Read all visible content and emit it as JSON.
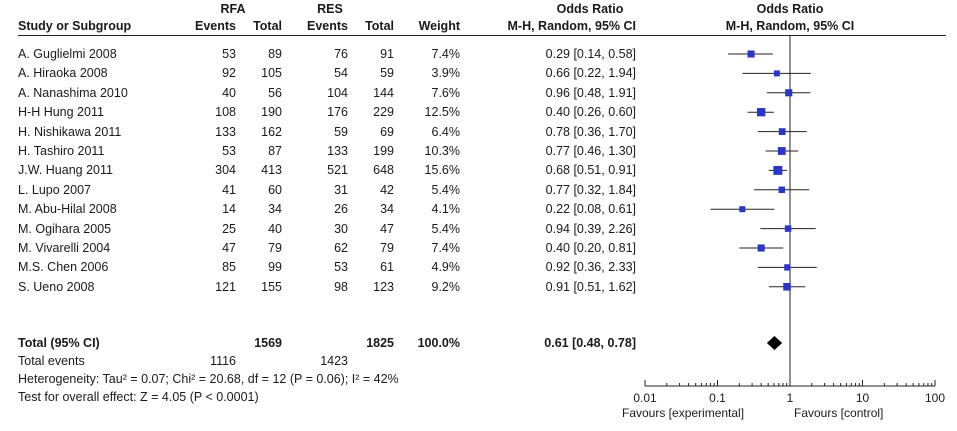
{
  "headers": {
    "group_rfa": "RFA",
    "group_res": "RES",
    "study": "Study or Subgroup",
    "events1": "Events",
    "total1": "Total",
    "events2": "Events",
    "total2": "Total",
    "weight": "Weight",
    "or_title": "Odds Ratio",
    "or_method": "M-H, Random, 95% CI",
    "plot_title": "Odds Ratio",
    "plot_method": "M-H, Random, 95% CI"
  },
  "chart_data": {
    "type": "forest",
    "x_scale": "log",
    "xlim": [
      0.01,
      100
    ],
    "ticks": [
      "0.01",
      "0.1",
      "1",
      "10",
      "100"
    ],
    "tick_values": [
      0.01,
      0.1,
      1,
      10,
      100
    ],
    "null_line": 1,
    "xlabel_left": "Favours [experimental]",
    "xlabel_right": "Favours [control]",
    "studies": [
      {
        "study": "A. Guglielmi 2008",
        "e1": "53",
        "n1": "89",
        "e2": "76",
        "n2": "91",
        "weight": "7.4%",
        "ci": "0.29 [0.14, 0.58]",
        "or": 0.29,
        "lo": 0.14,
        "hi": 0.58
      },
      {
        "study": "A. Hiraoka 2008",
        "e1": "92",
        "n1": "105",
        "e2": "54",
        "n2": "59",
        "weight": "3.9%",
        "ci": "0.66 [0.22, 1.94]",
        "or": 0.66,
        "lo": 0.22,
        "hi": 1.94
      },
      {
        "study": "A. Nanashima 2010",
        "e1": "40",
        "n1": "56",
        "e2": "104",
        "n2": "144",
        "weight": "7.6%",
        "ci": "0.96 [0.48, 1.91]",
        "or": 0.96,
        "lo": 0.48,
        "hi": 1.91
      },
      {
        "study": "H-H Hung 2011",
        "e1": "108",
        "n1": "190",
        "e2": "176",
        "n2": "229",
        "weight": "12.5%",
        "ci": "0.40 [0.26, 0.60]",
        "or": 0.4,
        "lo": 0.26,
        "hi": 0.6
      },
      {
        "study": "H. Nishikawa 2011",
        "e1": "133",
        "n1": "162",
        "e2": "59",
        "n2": "69",
        "weight": "6.4%",
        "ci": "0.78 [0.36, 1.70]",
        "or": 0.78,
        "lo": 0.36,
        "hi": 1.7
      },
      {
        "study": "H. Tashiro 2011",
        "e1": "53",
        "n1": "87",
        "e2": "133",
        "n2": "199",
        "weight": "10.3%",
        "ci": "0.77 [0.46, 1.30]",
        "or": 0.77,
        "lo": 0.46,
        "hi": 1.3
      },
      {
        "study": "J.W. Huang 2011",
        "e1": "304",
        "n1": "413",
        "e2": "521",
        "n2": "648",
        "weight": "15.6%",
        "ci": "0.68 [0.51, 0.91]",
        "or": 0.68,
        "lo": 0.51,
        "hi": 0.91
      },
      {
        "study": "L. Lupo 2007",
        "e1": "41",
        "n1": "60",
        "e2": "31",
        "n2": "42",
        "weight": "5.4%",
        "ci": "0.77 [0.32, 1.84]",
        "or": 0.77,
        "lo": 0.32,
        "hi": 1.84
      },
      {
        "study": "M. Abu-Hilal 2008",
        "e1": "14",
        "n1": "34",
        "e2": "26",
        "n2": "34",
        "weight": "4.1%",
        "ci": "0.22 [0.08, 0.61]",
        "or": 0.22,
        "lo": 0.08,
        "hi": 0.61
      },
      {
        "study": "M. Ogihara 2005",
        "e1": "25",
        "n1": "40",
        "e2": "30",
        "n2": "47",
        "weight": "5.4%",
        "ci": "0.94 [0.39, 2.26]",
        "or": 0.94,
        "lo": 0.39,
        "hi": 2.26
      },
      {
        "study": "M. Vivarelli 2004",
        "e1": "47",
        "n1": "79",
        "e2": "62",
        "n2": "79",
        "weight": "7.4%",
        "ci": "0.40 [0.20, 0.81]",
        "or": 0.4,
        "lo": 0.2,
        "hi": 0.81
      },
      {
        "study": "M.S. Chen 2006",
        "e1": "85",
        "n1": "99",
        "e2": "53",
        "n2": "61",
        "weight": "4.9%",
        "ci": "0.92 [0.36, 2.33]",
        "or": 0.92,
        "lo": 0.36,
        "hi": 2.33
      },
      {
        "study": "S. Ueno 2008",
        "e1": "121",
        "n1": "155",
        "e2": "98",
        "n2": "123",
        "weight": "9.2%",
        "ci": "0.91 [0.51, 1.62]",
        "or": 0.91,
        "lo": 0.51,
        "hi": 1.62
      }
    ],
    "total": {
      "label": "Total (95% CI)",
      "n1": "1569",
      "n2": "1825",
      "weight": "100.0%",
      "ci": "0.61 [0.48, 0.78]",
      "or": 0.61,
      "lo": 0.48,
      "hi": 0.78
    },
    "total_events": {
      "label": "Total events",
      "e1": "1116",
      "e2": "1423"
    },
    "heterogeneity": "Heterogeneity: Tau² = 0.07; Chi² = 20.68, df = 12 (P = 0.06); I² = 42%",
    "overall_effect": "Test for overall effect: Z = 4.05 (P < 0.0001)"
  },
  "colors": {
    "marker": "#2a35c9",
    "line": "#222222",
    "diamond": "#000000"
  }
}
